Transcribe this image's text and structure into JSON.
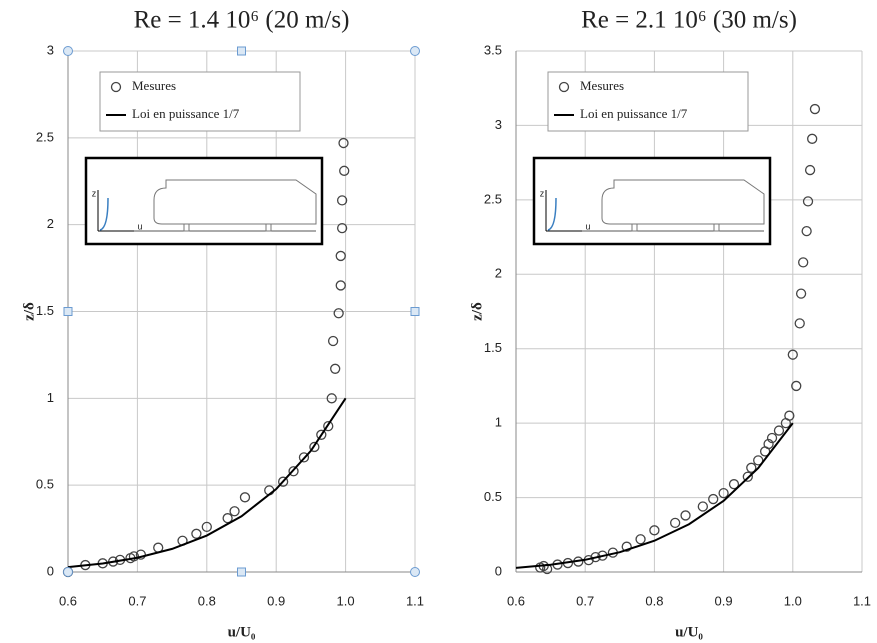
{
  "chart_data": [
    {
      "type": "scatter",
      "title": "Re = 1.4 10⁶ (20 m/s)",
      "x_label": "u/U₀",
      "y_label": "z/δ",
      "grid": true,
      "legend": "upper left",
      "selected": true,
      "inset_labels": [
        "z",
        "u"
      ],
      "xlim": [
        0.6,
        1.1
      ],
      "xticks": [
        0.6,
        0.7,
        0.8,
        0.9,
        {
          "value": 1,
          "label": "1.0"
        },
        1.1
      ],
      "ylim": [
        0,
        3
      ],
      "yticks": [
        0,
        0.5,
        1,
        1.5,
        2,
        2.5,
        3
      ],
      "series": [
        {
          "name": "Mesures",
          "mode": "markers",
          "color": "#444444",
          "x": [
            0.6,
            0.625,
            0.65,
            0.665,
            0.675,
            0.69,
            0.695,
            0.705,
            0.73,
            0.765,
            0.785,
            0.8,
            0.83,
            0.84,
            0.855,
            0.89,
            0.91,
            0.925,
            0.94,
            0.955,
            0.965,
            0.975,
            0.98,
            0.985,
            0.982,
            0.99,
            0.993,
            0.993,
            0.995,
            0.995,
            0.998,
            0.997
          ],
          "values": [
            0,
            0.04,
            0.05,
            0.06,
            0.07,
            0.08,
            0.09,
            0.1,
            0.14,
            0.18,
            0.22,
            0.26,
            0.31,
            0.35,
            0.43,
            0.47,
            0.52,
            0.58,
            0.66,
            0.72,
            0.79,
            0.84,
            1,
            1.17,
            1.33,
            1.49,
            1.65,
            1.82,
            1.98,
            2.14,
            2.31,
            2.47
          ]
        },
        {
          "name": "Loi en puissance 1/7",
          "mode": "line",
          "color": "#000000",
          "x": [
            0.6,
            0.65,
            0.7,
            0.75,
            0.8,
            0.85,
            0.9,
            0.95,
            1
          ],
          "values": [
            0.028,
            0.049,
            0.082,
            0.133,
            0.21,
            0.321,
            0.478,
            0.698,
            1
          ]
        }
      ]
    },
    {
      "type": "scatter",
      "title": "Re = 2.1 10⁶ (30 m/s)",
      "x_label": "u/U₀",
      "y_label": "z/δ",
      "grid": true,
      "legend": "upper left",
      "selected": false,
      "inset_labels": [
        "z",
        "u"
      ],
      "xlim": [
        0.6,
        1.1
      ],
      "xticks": [
        0.6,
        0.7,
        0.8,
        0.9,
        {
          "value": 1,
          "label": "1.0"
        },
        1.1
      ],
      "ylim": [
        0,
        3.5
      ],
      "yticks": [
        0,
        0.5,
        1,
        1.5,
        2,
        2.5,
        3,
        3.5
      ],
      "series": [
        {
          "name": "Mesures",
          "mode": "markers",
          "color": "#444444",
          "x": [
            0.635,
            0.64,
            0.645,
            0.66,
            0.675,
            0.69,
            0.705,
            0.715,
            0.725,
            0.74,
            0.76,
            0.78,
            0.8,
            0.83,
            0.845,
            0.87,
            0.885,
            0.9,
            0.915,
            0.935,
            0.94,
            0.95,
            0.96,
            0.965,
            0.97,
            0.98,
            0.99,
            0.995,
            1,
            1.005,
            1.01,
            1.012,
            1.015,
            1.02,
            1.022,
            1.025,
            1.028,
            1.032
          ],
          "values": [
            0.03,
            0.04,
            0.02,
            0.05,
            0.06,
            0.07,
            0.08,
            0.1,
            0.11,
            0.13,
            0.17,
            0.22,
            0.28,
            0.33,
            0.38,
            0.44,
            0.49,
            0.53,
            0.59,
            0.64,
            0.7,
            0.75,
            0.81,
            0.86,
            0.9,
            0.95,
            1,
            1.05,
            1.46,
            1.25,
            1.67,
            1.87,
            2.08,
            2.29,
            2.49,
            2.7,
            2.91,
            3.11
          ]
        },
        {
          "name": "Loi en puissance 1/7",
          "mode": "line",
          "color": "#000000",
          "x": [
            0.6,
            0.65,
            0.7,
            0.75,
            0.8,
            0.85,
            0.9,
            0.95,
            1
          ],
          "values": [
            0.028,
            0.049,
            0.082,
            0.133,
            0.21,
            0.321,
            0.478,
            0.698,
            1
          ]
        }
      ]
    }
  ]
}
